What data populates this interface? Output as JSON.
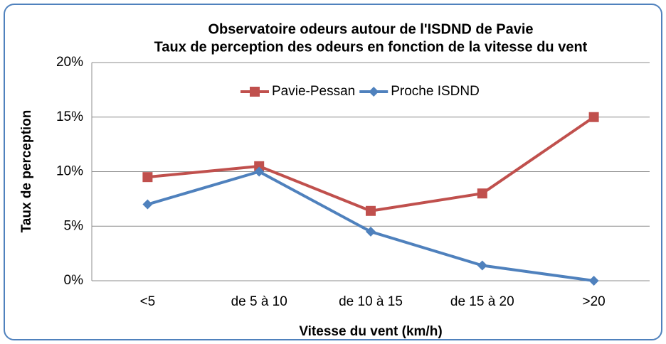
{
  "chart_data": {
    "type": "line",
    "title": "Observatoire odeurs autour de l'ISDND de Pavie",
    "subtitle": "Taux de perception des odeurs en fonction de la vitesse du vent",
    "x_label": "Vitesse du vent (km/h)",
    "y_label": "Taux de perception",
    "categories": [
      "<5",
      "de 5 à 10",
      "de 10 à 15",
      "de 15 à 20",
      ">20"
    ],
    "series": [
      {
        "name": "Pavie-Pessan",
        "color": "#c0504d",
        "marker": "square",
        "values": [
          9.5,
          10.5,
          6.4,
          8,
          15
        ]
      },
      {
        "name": "Proche ISDND",
        "color": "#4f81bd",
        "marker": "diamond",
        "values": [
          7,
          10,
          4.5,
          1.4,
          0
        ]
      }
    ],
    "ylim": [
      0,
      20
    ],
    "yticks": [
      {
        "value": 0,
        "label": "0%"
      },
      {
        "value": 5,
        "label": "5%"
      },
      {
        "value": 10,
        "label": "10%"
      },
      {
        "value": 15,
        "label": "15%"
      },
      {
        "value": 20,
        "label": "20%"
      }
    ],
    "grid": true,
    "legend": "top"
  }
}
